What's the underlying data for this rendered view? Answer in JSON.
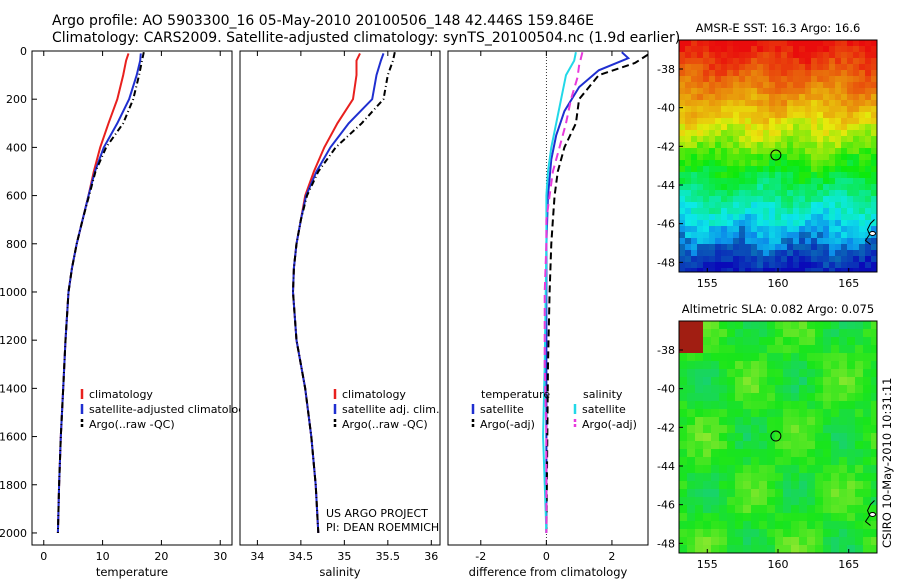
{
  "header": {
    "line1": "Argo profile: AO 5903300_16 05-May-2010 20100506_148 42.446S 159.846E",
    "line2": "Climatology: CARS2009. Satellite-adjusted climatology: synTS_20100504.nc (1.9d earlier)"
  },
  "chart_data": [
    {
      "id": "temperature",
      "type": "line",
      "xlabel": "temperature",
      "ylabel": "",
      "xlim": [
        -2,
        32
      ],
      "ylim": [
        0,
        2050
      ],
      "y_reversed": true,
      "xticks": [
        0,
        10,
        20,
        30
      ],
      "yticks": [
        0,
        200,
        400,
        600,
        800,
        1000,
        1200,
        1400,
        1600,
        1800,
        2000
      ],
      "legend": [
        "climatology",
        "satellite-adjusted climatology",
        "Argo(..raw -QC)"
      ],
      "series": [
        {
          "name": "climatology",
          "color": "#e8201e",
          "dash": "solid",
          "points": [
            [
              14.4,
              10
            ],
            [
              14.0,
              40
            ],
            [
              13.5,
              100
            ],
            [
              12.5,
              200
            ],
            [
              11.0,
              300
            ],
            [
              9.6,
              400
            ],
            [
              8.5,
              500
            ],
            [
              7.6,
              600
            ],
            [
              6.6,
              700
            ],
            [
              5.6,
              800
            ],
            [
              4.8,
              900
            ],
            [
              4.2,
              1000
            ],
            [
              3.7,
              1200
            ],
            [
              3.3,
              1400
            ],
            [
              2.9,
              1600
            ],
            [
              2.6,
              1800
            ],
            [
              2.4,
              2000
            ]
          ]
        },
        {
          "name": "satellite-adjusted climatology",
          "color": "#1f2fd0",
          "dash": "solid",
          "points": [
            [
              16.5,
              10
            ],
            [
              16.4,
              40
            ],
            [
              15.8,
              100
            ],
            [
              14.5,
              200
            ],
            [
              12.5,
              300
            ],
            [
              10.2,
              400
            ],
            [
              8.7,
              500
            ],
            [
              7.6,
              600
            ],
            [
              6.6,
              700
            ],
            [
              5.6,
              800
            ],
            [
              4.8,
              900
            ],
            [
              4.2,
              1000
            ],
            [
              3.7,
              1200
            ],
            [
              3.3,
              1400
            ],
            [
              2.9,
              1600
            ],
            [
              2.6,
              1800
            ],
            [
              2.4,
              2000
            ]
          ]
        },
        {
          "name": "Argo(..raw -QC)",
          "color": "#000000",
          "dash": "6,3,1,3",
          "points": [
            [
              17.0,
              5
            ],
            [
              16.7,
              40
            ],
            [
              16.2,
              100
            ],
            [
              15.2,
              200
            ],
            [
              13.5,
              300
            ],
            [
              10.6,
              400
            ],
            [
              8.8,
              500
            ],
            [
              7.7,
              600
            ],
            [
              6.6,
              700
            ],
            [
              5.6,
              800
            ],
            [
              4.8,
              900
            ],
            [
              4.2,
              1000
            ],
            [
              3.7,
              1200
            ],
            [
              3.3,
              1400
            ],
            [
              2.9,
              1600
            ],
            [
              2.6,
              1800
            ],
            [
              2.4,
              2000
            ]
          ]
        }
      ]
    },
    {
      "id": "salinity",
      "type": "line",
      "xlabel": "salinity",
      "xlim": [
        33.8,
        36.1
      ],
      "ylim": [
        0,
        2050
      ],
      "y_reversed": true,
      "xticks": [
        34,
        34.5,
        35,
        35.5,
        36
      ],
      "legend": [
        "climatology",
        "satellite adj. clim.",
        "Argo(..raw -QC)"
      ],
      "annotation": [
        "US ARGO PROJECT",
        "PI: DEAN ROEMMICH"
      ],
      "series": [
        {
          "name": "climatology",
          "color": "#e8201e",
          "dash": "solid",
          "points": [
            [
              35.18,
              10
            ],
            [
              35.14,
              40
            ],
            [
              35.14,
              100
            ],
            [
              35.1,
              200
            ],
            [
              34.92,
              300
            ],
            [
              34.77,
              400
            ],
            [
              34.65,
              500
            ],
            [
              34.55,
              600
            ],
            [
              34.5,
              700
            ],
            [
              34.45,
              800
            ],
            [
              34.42,
              900
            ],
            [
              34.41,
              1000
            ],
            [
              34.45,
              1200
            ],
            [
              34.55,
              1400
            ],
            [
              34.62,
              1600
            ],
            [
              34.67,
              1800
            ],
            [
              34.7,
              2000
            ]
          ]
        },
        {
          "name": "satellite adj. clim.",
          "color": "#1f2fd0",
          "dash": "solid",
          "points": [
            [
              35.45,
              10
            ],
            [
              35.42,
              40
            ],
            [
              35.37,
              100
            ],
            [
              35.32,
              200
            ],
            [
              35.05,
              300
            ],
            [
              34.84,
              400
            ],
            [
              34.68,
              500
            ],
            [
              34.56,
              600
            ],
            [
              34.5,
              700
            ],
            [
              34.45,
              800
            ],
            [
              34.42,
              900
            ],
            [
              34.41,
              1000
            ],
            [
              34.45,
              1200
            ],
            [
              34.55,
              1400
            ],
            [
              34.62,
              1600
            ],
            [
              34.67,
              1800
            ],
            [
              34.7,
              2000
            ]
          ]
        },
        {
          "name": "Argo(..raw -QC)",
          "color": "#000000",
          "dash": "6,3,1,3",
          "points": [
            [
              35.58,
              5
            ],
            [
              35.56,
              40
            ],
            [
              35.5,
              100
            ],
            [
              35.45,
              200
            ],
            [
              35.2,
              300
            ],
            [
              34.9,
              400
            ],
            [
              34.7,
              500
            ],
            [
              34.57,
              600
            ],
            [
              34.5,
              700
            ],
            [
              34.45,
              800
            ],
            [
              34.42,
              900
            ],
            [
              34.41,
              1000
            ],
            [
              34.45,
              1200
            ],
            [
              34.55,
              1400
            ],
            [
              34.62,
              1600
            ],
            [
              34.67,
              1800
            ],
            [
              34.7,
              2000
            ]
          ]
        }
      ]
    },
    {
      "id": "difference",
      "type": "line",
      "xlabel": "difference from climatology",
      "xlim": [
        -3,
        3.1
      ],
      "ylim": [
        0,
        2050
      ],
      "y_reversed": true,
      "xticks": [
        -2,
        0,
        2
      ],
      "legend": [
        "temperature",
        "satellite",
        "Argo(-adj)",
        "salinity",
        "satellite",
        "Argo(-adj)"
      ],
      "series": [
        {
          "name": "temperature satellite",
          "color": "#1f2fd0",
          "dash": "solid",
          "points": [
            [
              2.3,
              5
            ],
            [
              2.5,
              30
            ],
            [
              1.6,
              80
            ],
            [
              1.0,
              150
            ],
            [
              0.55,
              250
            ],
            [
              0.3,
              350
            ],
            [
              0.15,
              450
            ],
            [
              0.05,
              600
            ],
            [
              0.0,
              800
            ],
            [
              0.0,
              1000
            ],
            [
              0.0,
              2000
            ]
          ]
        },
        {
          "name": "temperature Argo(-adj)",
          "color": "#000000",
          "dash": "7,4",
          "points": [
            [
              3.1,
              15
            ],
            [
              2.7,
              50
            ],
            [
              1.6,
              100
            ],
            [
              1.0,
              200
            ],
            [
              0.9,
              300
            ],
            [
              0.55,
              400
            ],
            [
              0.35,
              500
            ],
            [
              0.25,
              600
            ],
            [
              0.2,
              700
            ],
            [
              0.15,
              800
            ],
            [
              0.1,
              1000
            ],
            [
              0.05,
              1300
            ],
            [
              0.0,
              2000
            ]
          ]
        },
        {
          "name": "salinity satellite",
          "color": "#22d8e8",
          "dash": "solid",
          "points": [
            [
              0.9,
              5
            ],
            [
              0.85,
              40
            ],
            [
              0.6,
              100
            ],
            [
              0.45,
              200
            ],
            [
              0.3,
              300
            ],
            [
              0.15,
              400
            ],
            [
              0.05,
              500
            ],
            [
              0.0,
              600
            ],
            [
              0.0,
              800
            ],
            [
              -0.05,
              1300
            ],
            [
              -0.1,
              1600
            ],
            [
              0.0,
              2000
            ]
          ]
        },
        {
          "name": "salinity Argo(-adj)",
          "color": "#e83adc",
          "dash": "8,5",
          "points": [
            [
              1.1,
              5
            ],
            [
              1.0,
              60
            ],
            [
              0.95,
              110
            ],
            [
              0.75,
              200
            ],
            [
              0.6,
              300
            ],
            [
              0.4,
              400
            ],
            [
              0.2,
              500
            ],
            [
              0.1,
              600
            ],
            [
              0.0,
              700
            ],
            [
              0.0,
              800
            ],
            [
              -0.05,
              1000
            ],
            [
              -0.05,
              1300
            ],
            [
              0.0,
              1600
            ],
            [
              0.0,
              2000
            ]
          ]
        }
      ]
    }
  ],
  "maps": [
    {
      "title": "AMSR-E SST: 16.3 Argo: 16.6",
      "xticks": [
        "155",
        "160",
        "165"
      ],
      "yticks": [
        "-38",
        "-40",
        "-42",
        "-44",
        "-46",
        "-48"
      ],
      "lat_range": [
        -48.5,
        -36.5
      ],
      "lon_range": [
        153,
        167
      ],
      "marker": [
        159.85,
        -42.45
      ]
    },
    {
      "title": "Altimetric SLA: 0.082 Argo: 0.075",
      "xticks": [
        "155",
        "160",
        "165"
      ],
      "yticks": [
        "-38",
        "-40",
        "-42",
        "-44",
        "-46",
        "-48"
      ],
      "lat_range": [
        -48.5,
        -36.5
      ],
      "lon_range": [
        153,
        167
      ],
      "marker": [
        159.85,
        -42.45
      ]
    }
  ],
  "footer": {
    "credit": "CSIRO 10-May-2010 10:31:11"
  }
}
